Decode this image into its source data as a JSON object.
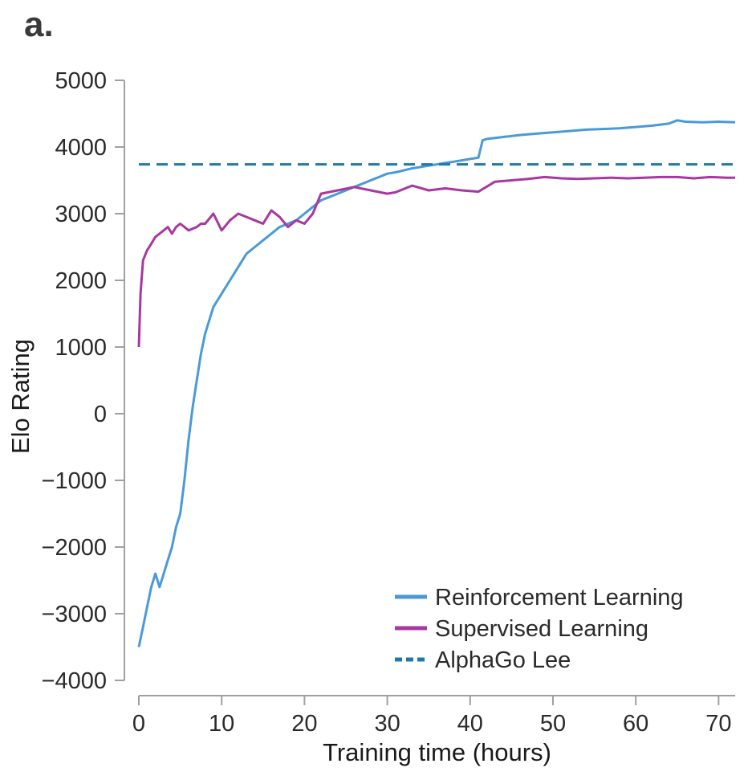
{
  "panel_label": "a.",
  "chart_data": {
    "type": "line",
    "xlabel": "Training time (hours)",
    "ylabel": "Elo Rating",
    "xlim": [
      0,
      72
    ],
    "ylim": [
      -4000,
      5000
    ],
    "xticks": [
      0,
      10,
      20,
      30,
      40,
      50,
      60,
      70
    ],
    "yticks": [
      -4000,
      -3000,
      -2000,
      -1000,
      0,
      1000,
      2000,
      3000,
      4000,
      5000
    ],
    "grid": false,
    "legend_position": "bottom-right",
    "series": [
      {
        "name": "Reinforcement Learning",
        "color": "#4a9ad8",
        "style": "solid",
        "x": [
          0,
          0.5,
          1,
          1.5,
          2,
          2.5,
          3,
          3.5,
          4,
          4.5,
          5,
          5.5,
          6,
          6.5,
          7,
          7.5,
          8,
          8.5,
          9,
          10,
          11,
          12,
          13,
          14,
          15,
          16,
          17,
          18,
          19,
          20,
          21,
          22,
          23,
          24,
          25,
          26,
          27,
          28,
          29,
          30,
          31,
          32,
          33,
          34,
          35,
          36,
          37,
          38,
          39,
          40,
          41,
          41.5,
          42,
          44,
          46,
          48,
          50,
          52,
          54,
          56,
          58,
          60,
          62,
          64,
          65,
          66,
          68,
          70,
          72
        ],
        "y": [
          -3500,
          -3200,
          -2900,
          -2600,
          -2400,
          -2600,
          -2400,
          -2200,
          -2000,
          -1700,
          -1500,
          -1000,
          -400,
          100,
          500,
          900,
          1200,
          1400,
          1600,
          1800,
          2000,
          2200,
          2400,
          2500,
          2600,
          2700,
          2800,
          2850,
          2900,
          3000,
          3100,
          3200,
          3250,
          3300,
          3350,
          3400,
          3450,
          3500,
          3550,
          3600,
          3620,
          3650,
          3680,
          3700,
          3720,
          3740,
          3760,
          3780,
          3800,
          3820,
          3840,
          4100,
          4120,
          4150,
          4180,
          4200,
          4220,
          4240,
          4260,
          4270,
          4280,
          4300,
          4320,
          4350,
          4400,
          4380,
          4370,
          4380,
          4370
        ]
      },
      {
        "name": "Supervised Learning",
        "color": "#a8389f",
        "style": "solid",
        "x": [
          0,
          0.2,
          0.5,
          1,
          1.5,
          2,
          2.5,
          3,
          3.5,
          4,
          4.5,
          5,
          5.5,
          6,
          7,
          7.5,
          8,
          9,
          10,
          11,
          12,
          13,
          14,
          15,
          16,
          17,
          18,
          19,
          20,
          21,
          22,
          24,
          26,
          28,
          30,
          31,
          33,
          35,
          37,
          39,
          41,
          43,
          45,
          47,
          49,
          51,
          53,
          55,
          57,
          59,
          61,
          63,
          65,
          67,
          69,
          71,
          72
        ],
        "y": [
          1000,
          1800,
          2300,
          2450,
          2550,
          2650,
          2700,
          2750,
          2800,
          2700,
          2800,
          2850,
          2800,
          2750,
          2800,
          2850,
          2850,
          3000,
          2750,
          2900,
          3000,
          2950,
          2900,
          2850,
          3050,
          2950,
          2800,
          2900,
          2850,
          3000,
          3300,
          3350,
          3400,
          3350,
          3300,
          3320,
          3420,
          3350,
          3380,
          3350,
          3330,
          3480,
          3500,
          3520,
          3550,
          3530,
          3520,
          3530,
          3540,
          3530,
          3540,
          3550,
          3550,
          3530,
          3550,
          3540,
          3540
        ]
      },
      {
        "name": "AlphaGo Lee",
        "color": "#1f78a8",
        "style": "dashed",
        "x": [
          0,
          72
        ],
        "y": [
          3740,
          3740
        ]
      }
    ]
  }
}
